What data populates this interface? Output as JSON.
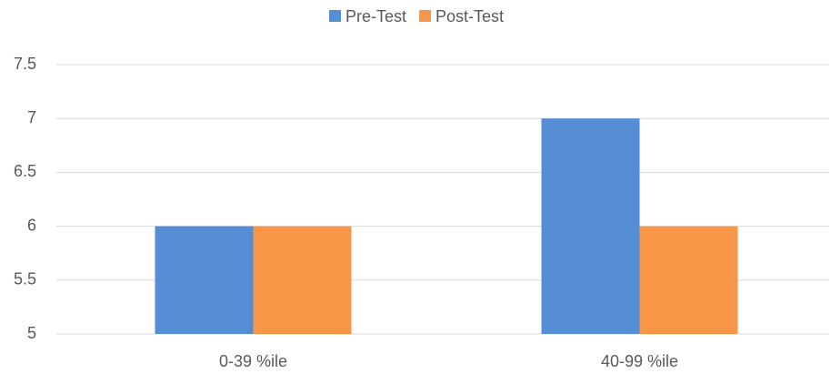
{
  "chart_data": {
    "type": "bar",
    "categories": [
      "0-39 %ile",
      "40-99 %ile"
    ],
    "series": [
      {
        "name": "Pre-Test",
        "color": "#558ed5",
        "values": [
          6,
          7
        ]
      },
      {
        "name": "Post-Test",
        "color": "#f79646",
        "values": [
          6,
          6
        ]
      }
    ],
    "ylim": [
      5,
      7.5
    ],
    "yticks": [
      5,
      5.5,
      6,
      6.5,
      7,
      7.5
    ],
    "grid": true,
    "legend": "top"
  }
}
